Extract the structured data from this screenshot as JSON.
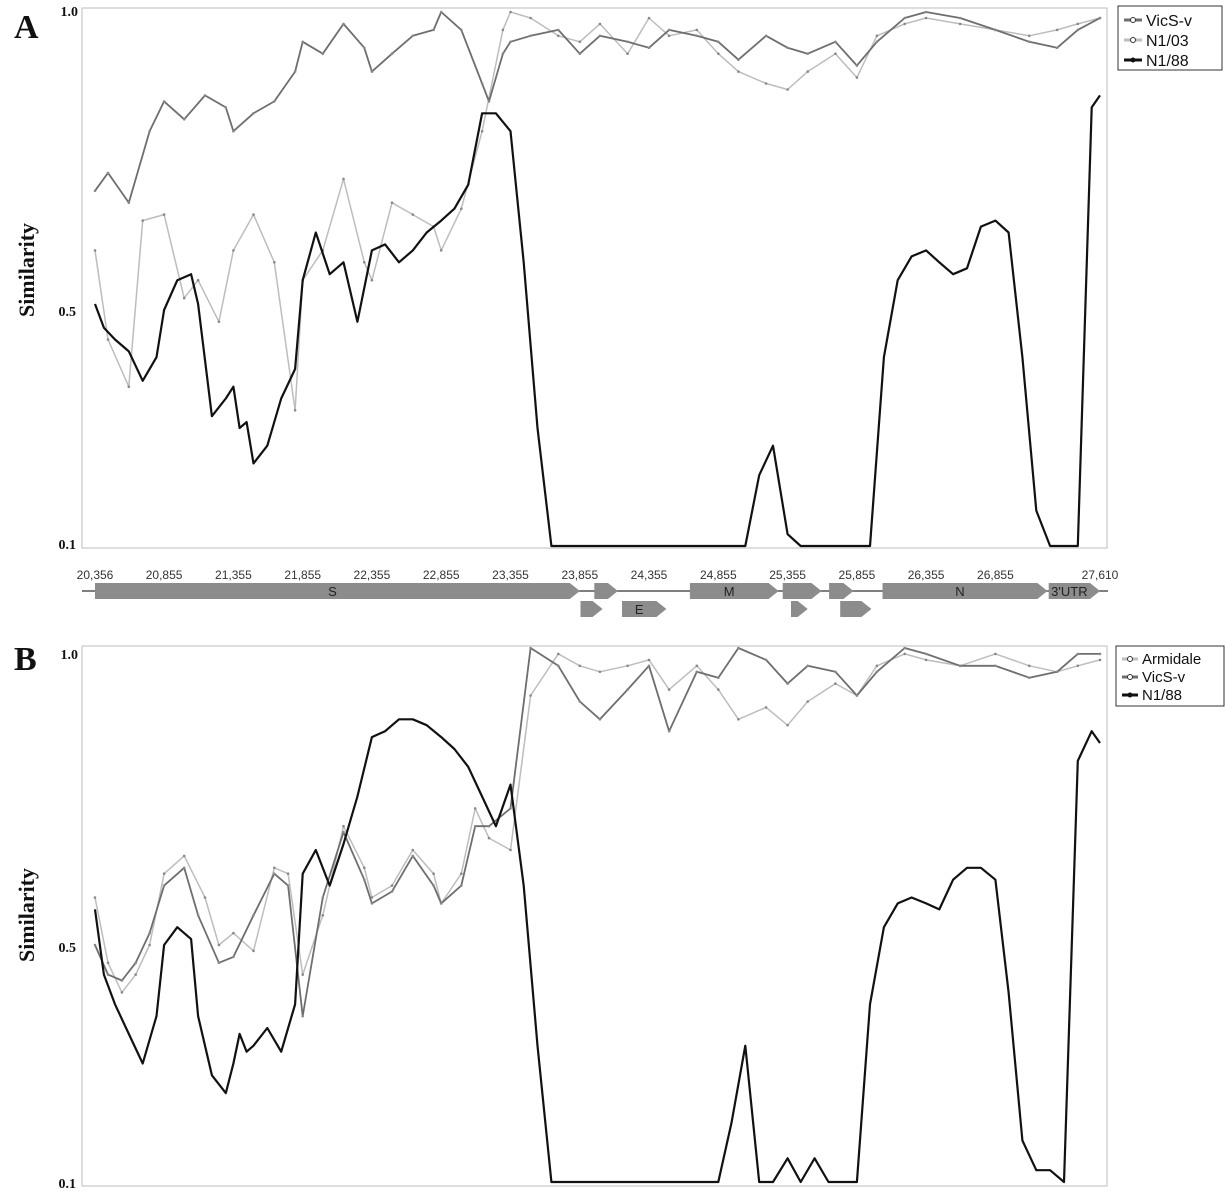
{
  "panels": {
    "a": {
      "letter": "A"
    },
    "b": {
      "letter": "B"
    }
  },
  "colors": {
    "dark": "#111111",
    "mid": "#6e6e6e",
    "light": "#bdbdbd",
    "gene": "#8c8c8c"
  },
  "chart_data": [
    {
      "type": "line",
      "panel": "A",
      "xlabel": "",
      "ylabel": "Similarity",
      "y_ticks": [
        "1.0",
        "0.5",
        "0.1"
      ],
      "ylim": [
        0.1,
        1.0
      ],
      "xlim": [
        20356,
        27610
      ],
      "x_tick_labels": [
        {
          "label": "20,356",
          "value": 20356
        },
        {
          "label": "20,855",
          "value": 20855
        },
        {
          "label": "21,355",
          "value": 21355
        },
        {
          "label": "21,855",
          "value": 21855
        },
        {
          "label": "22,355",
          "value": 22355
        },
        {
          "label": "22,855",
          "value": 22855
        },
        {
          "label": "23,355",
          "value": 23355
        },
        {
          "label": "23,855",
          "value": 23855
        },
        {
          "label": "24,355",
          "value": 24355
        },
        {
          "label": "24,855",
          "value": 24855
        },
        {
          "label": "25,355",
          "value": 25355
        },
        {
          "label": "25,855",
          "value": 25855
        },
        {
          "label": "26,355",
          "value": 26355
        },
        {
          "label": "26,855",
          "value": 26855
        },
        {
          "label": "27,610",
          "value": 27610
        }
      ],
      "legend": [
        "VicS-v",
        "N1/03",
        "N1/88"
      ],
      "legend_position": "top-right",
      "series": [
        {
          "name": "VicS-v",
          "color": "mid",
          "x": [
            20356,
            20450,
            20600,
            20750,
            20855,
            21000,
            21150,
            21300,
            21355,
            21500,
            21650,
            21800,
            21855,
            22000,
            22150,
            22300,
            22355,
            22500,
            22650,
            22800,
            22855,
            23000,
            23150,
            23200,
            23300,
            23355,
            23500,
            23700,
            23855,
            24000,
            24200,
            24355,
            24500,
            24700,
            24855,
            25000,
            25200,
            25355,
            25500,
            25700,
            25855,
            26000,
            26200,
            26355,
            26600,
            26855,
            27100,
            27300,
            27450,
            27610
          ],
          "y": [
            0.7,
            0.73,
            0.68,
            0.8,
            0.85,
            0.82,
            0.86,
            0.84,
            0.8,
            0.83,
            0.85,
            0.9,
            0.95,
            0.93,
            0.98,
            0.94,
            0.9,
            0.93,
            0.96,
            0.97,
            1.0,
            0.97,
            0.88,
            0.85,
            0.93,
            0.95,
            0.96,
            0.97,
            0.93,
            0.96,
            0.95,
            0.94,
            0.97,
            0.96,
            0.95,
            0.92,
            0.96,
            0.94,
            0.93,
            0.95,
            0.91,
            0.95,
            0.99,
            1.0,
            0.99,
            0.97,
            0.95,
            0.94,
            0.97,
            0.99
          ]
        },
        {
          "name": "N1/03",
          "color": "light",
          "x": [
            20356,
            20450,
            20600,
            20700,
            20855,
            21000,
            21100,
            21250,
            21355,
            21500,
            21650,
            21800,
            21855,
            22000,
            22150,
            22300,
            22355,
            22500,
            22650,
            22800,
            22855,
            23000,
            23150,
            23300,
            23355,
            23500,
            23700,
            23855,
            24000,
            24200,
            24355,
            24500,
            24700,
            24855,
            25000,
            25200,
            25355,
            25500,
            25700,
            25855,
            26000,
            26200,
            26355,
            26600,
            26855,
            27100,
            27300,
            27450,
            27610
          ],
          "y": [
            0.6,
            0.45,
            0.37,
            0.65,
            0.66,
            0.52,
            0.55,
            0.48,
            0.6,
            0.66,
            0.58,
            0.33,
            0.55,
            0.6,
            0.72,
            0.58,
            0.55,
            0.68,
            0.66,
            0.64,
            0.6,
            0.67,
            0.8,
            0.97,
            1.0,
            0.99,
            0.96,
            0.95,
            0.98,
            0.93,
            0.99,
            0.96,
            0.97,
            0.93,
            0.9,
            0.88,
            0.87,
            0.9,
            0.93,
            0.89,
            0.96,
            0.98,
            0.99,
            0.98,
            0.97,
            0.96,
            0.97,
            0.98,
            0.99
          ]
        },
        {
          "name": "N1/88",
          "color": "dark",
          "x": [
            20356,
            20420,
            20500,
            20600,
            20700,
            20800,
            20855,
            20950,
            21050,
            21100,
            21200,
            21300,
            21355,
            21400,
            21450,
            21500,
            21600,
            21700,
            21800,
            21855,
            21950,
            22050,
            22150,
            22250,
            22355,
            22450,
            22550,
            22650,
            22750,
            22855,
            22950,
            23050,
            23150,
            23250,
            23355,
            23450,
            23550,
            23650,
            23750,
            23855,
            23900,
            24000,
            24100,
            24200,
            24300,
            24355,
            24500,
            24700,
            24855,
            24950,
            25050,
            25150,
            25250,
            25355,
            25450,
            25550,
            25650,
            25750,
            25855,
            25950,
            26050,
            26150,
            26250,
            26355,
            26450,
            26550,
            26650,
            26750,
            26855,
            26950,
            27050,
            27150,
            27250,
            27350,
            27450,
            27550,
            27610
          ],
          "y": [
            0.51,
            0.47,
            0.45,
            0.43,
            0.38,
            0.42,
            0.5,
            0.55,
            0.56,
            0.51,
            0.32,
            0.35,
            0.37,
            0.3,
            0.31,
            0.24,
            0.27,
            0.35,
            0.4,
            0.55,
            0.63,
            0.56,
            0.58,
            0.48,
            0.6,
            0.61,
            0.58,
            0.6,
            0.63,
            0.65,
            0.67,
            0.71,
            0.83,
            0.83,
            0.8,
            0.58,
            0.3,
            0.1,
            0.1,
            0.1,
            0.1,
            0.1,
            0.1,
            0.1,
            0.1,
            0.1,
            0.1,
            0.1,
            0.1,
            0.1,
            0.1,
            0.22,
            0.27,
            0.12,
            0.1,
            0.1,
            0.1,
            0.1,
            0.1,
            0.1,
            0.42,
            0.55,
            0.59,
            0.6,
            0.58,
            0.56,
            0.57,
            0.64,
            0.65,
            0.63,
            0.42,
            0.16,
            0.1,
            0.1,
            0.1,
            0.84,
            0.86
          ]
        }
      ]
    },
    {
      "type": "line",
      "panel": "B",
      "xlabel": "",
      "ylabel": "Similarity",
      "y_ticks": [
        "1.0",
        "0.5",
        "0.1"
      ],
      "ylim": [
        0.1,
        1.0
      ],
      "xlim": [
        20356,
        27610
      ],
      "legend": [
        "Armidale",
        "VicS-v",
        "N1/88"
      ],
      "legend_position": "top-right",
      "series": [
        {
          "name": "Armidale",
          "color": "light",
          "x": [
            20356,
            20450,
            20550,
            20650,
            20750,
            20855,
            21000,
            21150,
            21250,
            21355,
            21500,
            21650,
            21750,
            21855,
            22000,
            22150,
            22300,
            22355,
            22500,
            22650,
            22800,
            22855,
            23000,
            23100,
            23200,
            23355,
            23500,
            23700,
            23855,
            24000,
            24200,
            24355,
            24500,
            24700,
            24855,
            25000,
            25200,
            25355,
            25500,
            25700,
            25855,
            26000,
            26200,
            26355,
            26600,
            26855,
            27100,
            27300,
            27450,
            27610
          ],
          "y": [
            0.58,
            0.47,
            0.42,
            0.45,
            0.5,
            0.62,
            0.65,
            0.58,
            0.5,
            0.52,
            0.49,
            0.63,
            0.62,
            0.45,
            0.55,
            0.7,
            0.63,
            0.58,
            0.6,
            0.66,
            0.62,
            0.57,
            0.62,
            0.73,
            0.68,
            0.66,
            0.92,
            0.99,
            0.97,
            0.96,
            0.97,
            0.98,
            0.93,
            0.97,
            0.93,
            0.88,
            0.9,
            0.87,
            0.91,
            0.94,
            0.92,
            0.97,
            0.99,
            0.98,
            0.97,
            0.99,
            0.97,
            0.96,
            0.97,
            0.98
          ]
        },
        {
          "name": "VicS-v",
          "color": "mid",
          "x": [
            20356,
            20450,
            20550,
            20650,
            20750,
            20855,
            21000,
            21100,
            21250,
            21355,
            21500,
            21650,
            21750,
            21855,
            22000,
            22150,
            22300,
            22355,
            22500,
            22650,
            22800,
            22855,
            23000,
            23100,
            23200,
            23355,
            23500,
            23700,
            23855,
            24000,
            24200,
            24355,
            24500,
            24700,
            24855,
            25000,
            25200,
            25355,
            25500,
            25700,
            25855,
            26000,
            26200,
            26355,
            26600,
            26855,
            27100,
            27300,
            27450,
            27610
          ],
          "y": [
            0.5,
            0.45,
            0.44,
            0.47,
            0.52,
            0.6,
            0.63,
            0.55,
            0.47,
            0.48,
            0.55,
            0.62,
            0.6,
            0.38,
            0.58,
            0.69,
            0.61,
            0.57,
            0.59,
            0.65,
            0.6,
            0.57,
            0.6,
            0.7,
            0.7,
            0.73,
            1.0,
            0.97,
            0.91,
            0.88,
            0.93,
            0.97,
            0.86,
            0.96,
            0.95,
            1.0,
            0.98,
            0.94,
            0.97,
            0.96,
            0.92,
            0.96,
            1.0,
            0.99,
            0.97,
            0.97,
            0.95,
            0.96,
            0.99,
            0.99
          ]
        },
        {
          "name": "N1/88",
          "color": "dark",
          "x": [
            20356,
            20420,
            20500,
            20600,
            20700,
            20800,
            20855,
            20950,
            21050,
            21100,
            21200,
            21300,
            21355,
            21400,
            21450,
            21500,
            21600,
            21700,
            21800,
            21855,
            21950,
            22050,
            22150,
            22250,
            22355,
            22450,
            22550,
            22650,
            22750,
            22855,
            22950,
            23050,
            23150,
            23250,
            23355,
            23450,
            23550,
            23650,
            23750,
            23855,
            23950,
            24100,
            24300,
            24500,
            24700,
            24855,
            24950,
            25050,
            25150,
            25250,
            25355,
            25450,
            25550,
            25650,
            25750,
            25855,
            25950,
            26050,
            26150,
            26250,
            26355,
            26450,
            26550,
            26650,
            26750,
            26855,
            26950,
            27050,
            27150,
            27250,
            27350,
            27450,
            27550,
            27610
          ],
          "y": [
            0.56,
            0.45,
            0.4,
            0.35,
            0.3,
            0.38,
            0.5,
            0.53,
            0.51,
            0.38,
            0.28,
            0.25,
            0.3,
            0.35,
            0.32,
            0.33,
            0.36,
            0.32,
            0.4,
            0.62,
            0.66,
            0.6,
            0.67,
            0.75,
            0.85,
            0.86,
            0.88,
            0.88,
            0.87,
            0.85,
            0.83,
            0.8,
            0.75,
            0.7,
            0.77,
            0.6,
            0.33,
            0.1,
            0.1,
            0.1,
            0.1,
            0.1,
            0.1,
            0.1,
            0.1,
            0.1,
            0.2,
            0.33,
            0.1,
            0.1,
            0.14,
            0.1,
            0.14,
            0.1,
            0.1,
            0.1,
            0.4,
            0.53,
            0.57,
            0.58,
            0.57,
            0.56,
            0.61,
            0.63,
            0.63,
            0.61,
            0.42,
            0.17,
            0.12,
            0.12,
            0.1,
            0.81,
            0.86,
            0.84
          ]
        }
      ]
    }
  ],
  "genome_map": {
    "genes": [
      {
        "label": "S",
        "row": 1,
        "start": 20356,
        "end": 23855
      },
      {
        "label": "",
        "row": 1,
        "start": 23960,
        "end": 24130
      },
      {
        "label": "M",
        "row": 1,
        "start": 24650,
        "end": 25290
      },
      {
        "label": "",
        "row": 1,
        "start": 25320,
        "end": 25600
      },
      {
        "label": "",
        "row": 1,
        "start": 25655,
        "end": 25830
      },
      {
        "label": "N",
        "row": 1,
        "start": 26040,
        "end": 27230
      },
      {
        "label": "3'UTR",
        "row": 1,
        "start": 27240,
        "end": 27610
      },
      {
        "label": "",
        "row": 2,
        "start": 23860,
        "end": 24020
      },
      {
        "label": "E",
        "row": 2,
        "start": 24160,
        "end": 24480
      },
      {
        "label": "",
        "row": 2,
        "start": 25380,
        "end": 25500
      },
      {
        "label": "",
        "row": 2,
        "start": 25735,
        "end": 25960
      }
    ]
  }
}
